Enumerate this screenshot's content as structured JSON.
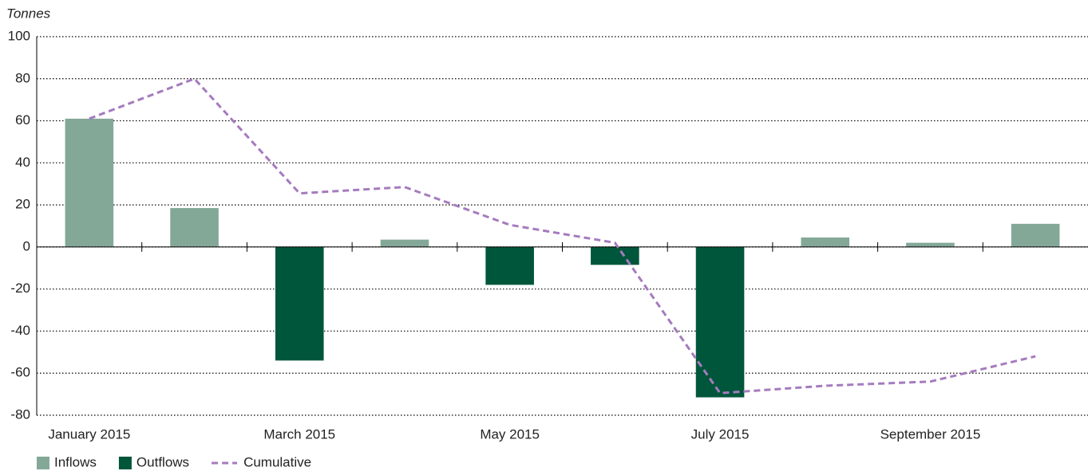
{
  "chart_data": {
    "type": "bar",
    "y_label": "Tonnes",
    "categories": [
      "January 2015",
      null,
      "March 2015",
      null,
      "May 2015",
      null,
      "July 2015",
      null,
      "September 2015",
      null
    ],
    "series": [
      {
        "name": "Inflows",
        "color": "#84a898",
        "values": [
          61,
          18.5,
          null,
          3.5,
          null,
          null,
          null,
          4.5,
          2,
          11
        ]
      },
      {
        "name": "Outflows",
        "color": "#00563b",
        "values": [
          null,
          null,
          -54,
          null,
          -18,
          -8.5,
          -71.5,
          null,
          null,
          null
        ]
      },
      {
        "name": "Cumulative",
        "type": "line",
        "dashed": true,
        "color": "#a57bbf",
        "values": [
          61,
          80,
          25.5,
          28.5,
          10.5,
          2,
          -69.5,
          -66,
          -64,
          -52
        ]
      }
    ],
    "ylim": [
      -80,
      100
    ],
    "yticks": [
      -80,
      -60,
      -40,
      -20,
      0,
      20,
      40,
      60,
      80,
      100
    ],
    "grid": true,
    "legend": "bottom-left"
  }
}
